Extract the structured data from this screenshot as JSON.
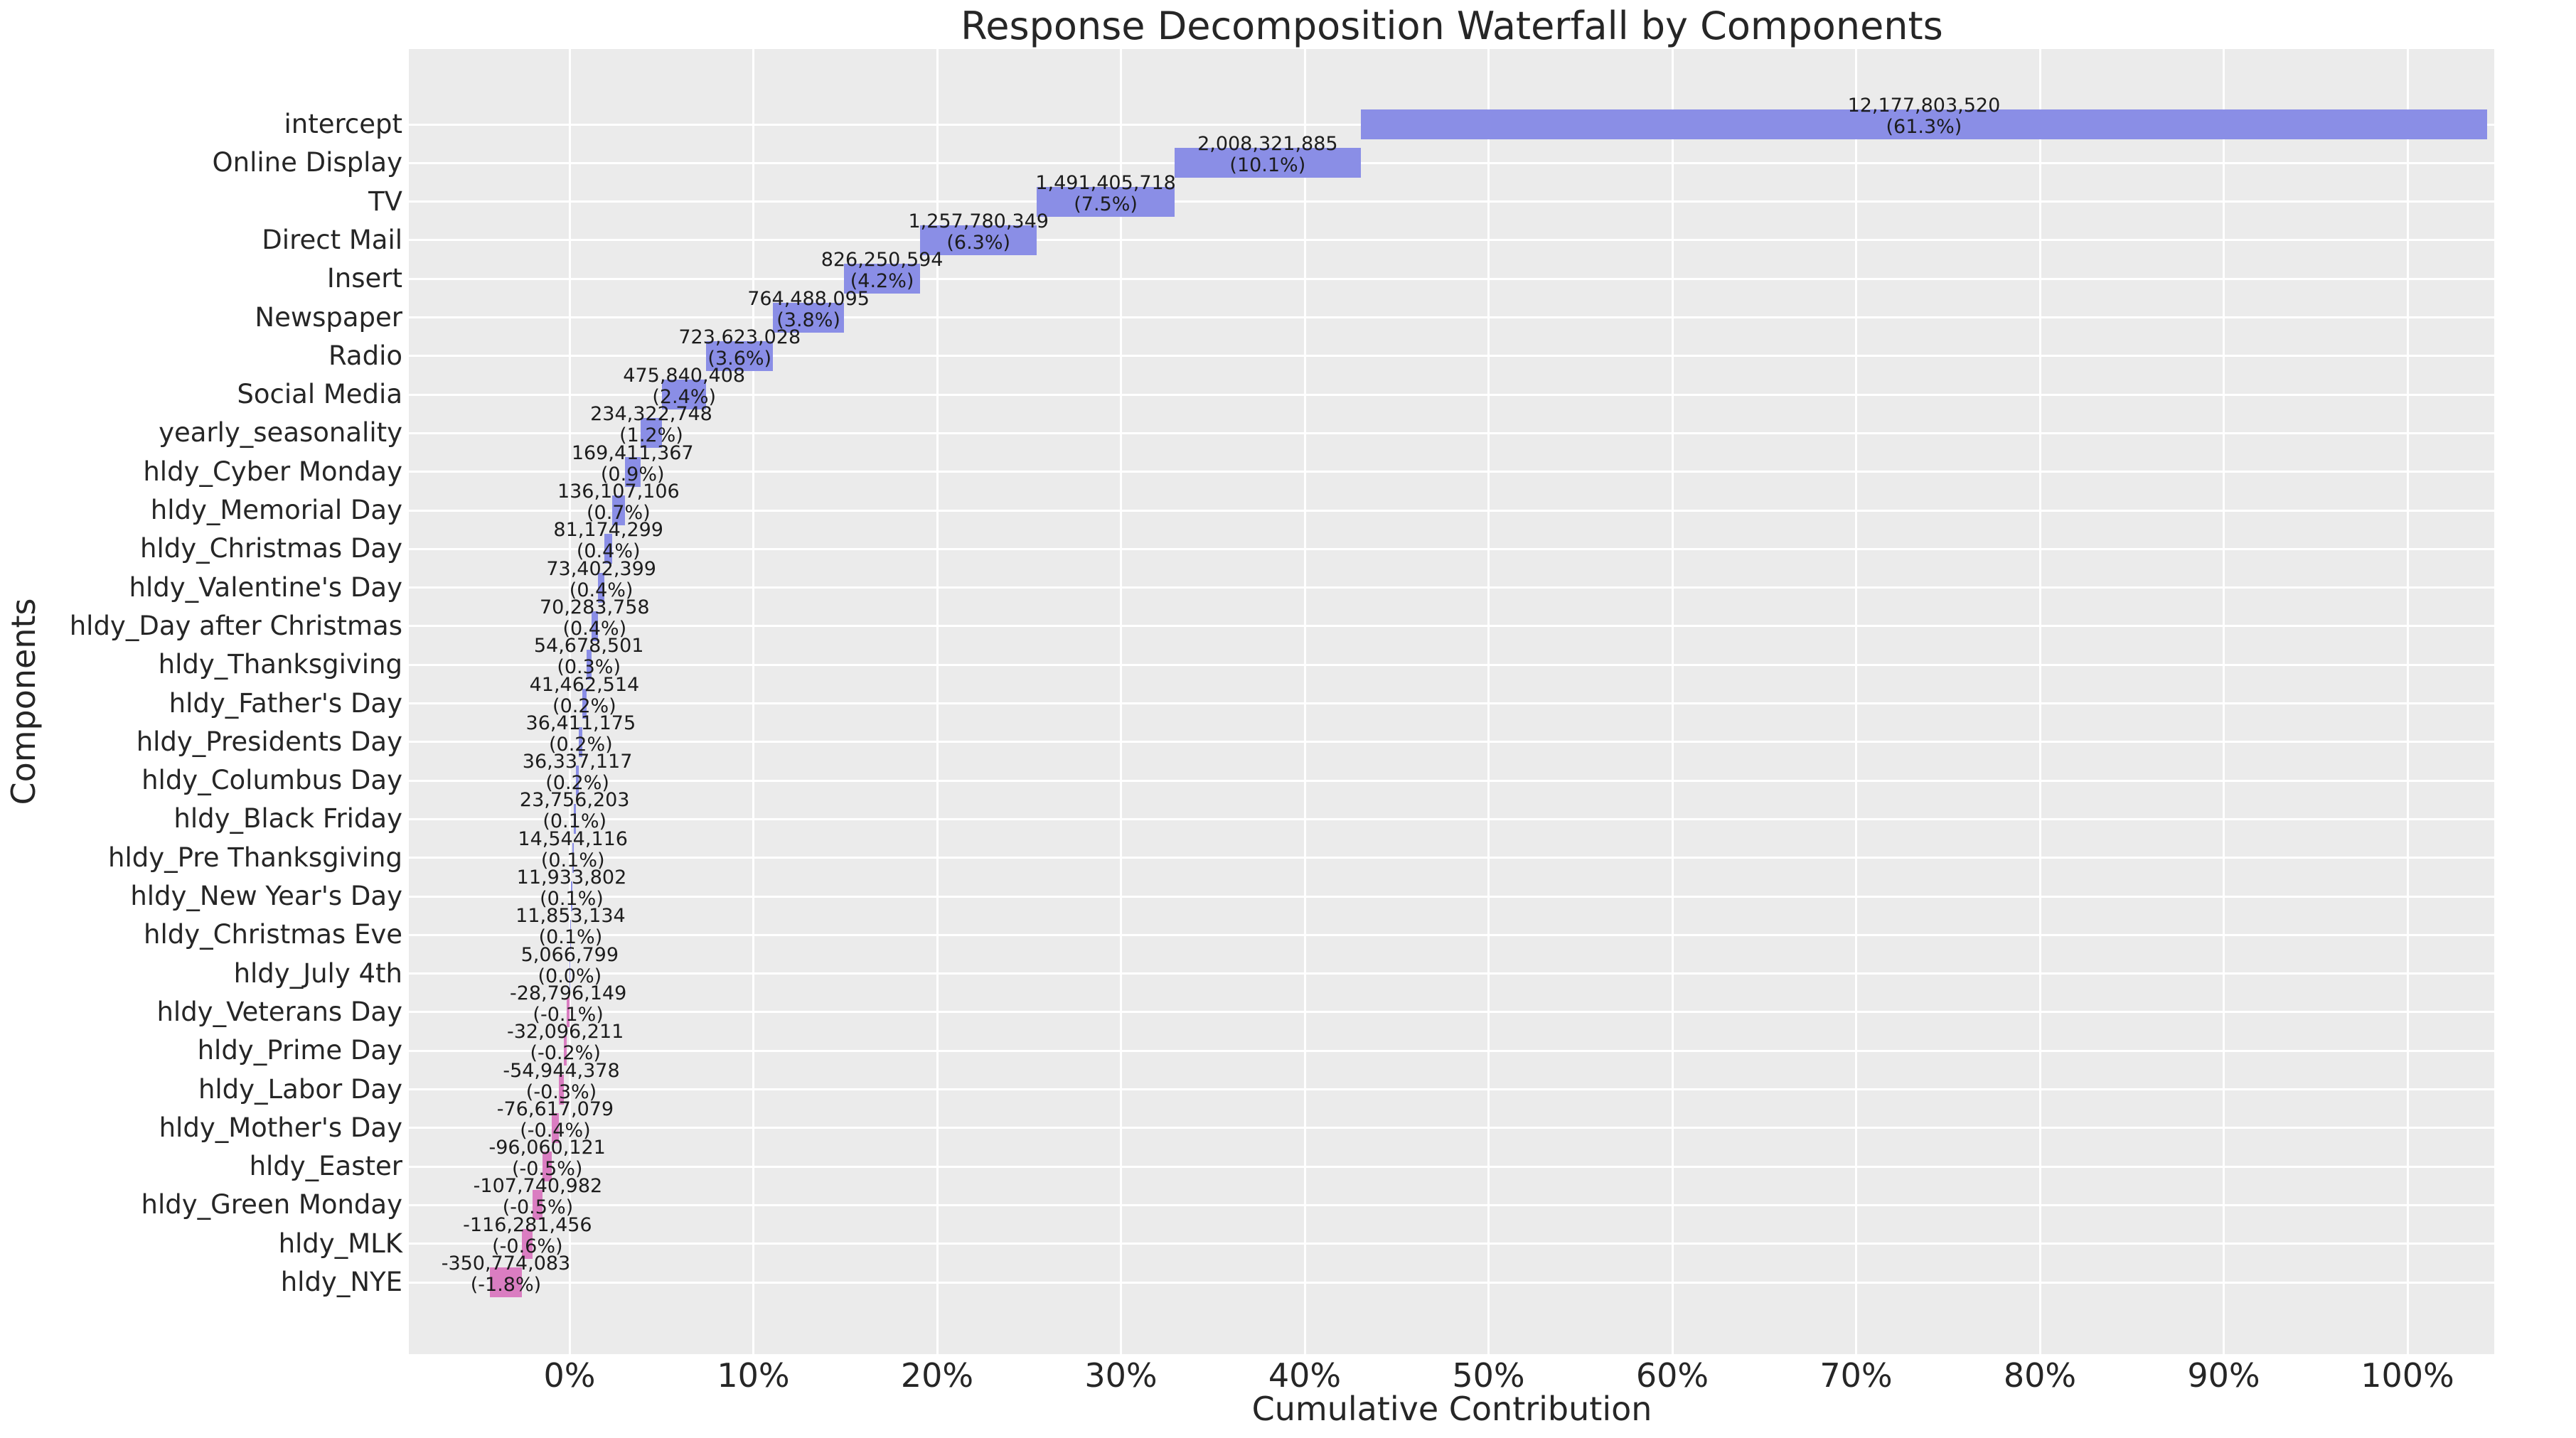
{
  "title": "Response Decomposition Waterfall by Components",
  "xlabel": "Cumulative Contribution",
  "ylabel": "Components",
  "colors": {
    "positive_bar": "#8A8EE6",
    "negative_bar": "#DA7DC1",
    "axes_background": "#EBEBEB",
    "gridline": "#FFFFFF",
    "text": "#262626"
  },
  "x_ticks": [
    "0%",
    "10%",
    "20%",
    "30%",
    "40%",
    "50%",
    "60%",
    "70%",
    "80%",
    "90%",
    "100%"
  ],
  "chart_data": {
    "type": "bar",
    "subtype": "horizontal-waterfall",
    "title": "Response Decomposition Waterfall by Components",
    "xlabel": "Cumulative Contribution",
    "ylabel": "Components",
    "grid": true,
    "xlim_pct": [
      -8.7,
      104.7
    ],
    "x_tick_pcts": [
      0,
      10,
      20,
      30,
      40,
      50,
      60,
      70,
      80,
      90,
      100
    ],
    "categories": [
      "intercept",
      "Online Display",
      "TV",
      "Direct Mail",
      "Insert",
      "Newspaper",
      "Radio",
      "Social Media",
      "yearly_seasonality",
      "hldy_Cyber Monday",
      "hldy_Memorial Day",
      "hldy_Christmas Day",
      "hldy_Valentine's Day",
      "hldy_Day after Christmas",
      "hldy_Thanksgiving",
      "hldy_Father's Day",
      "hldy_Presidents Day",
      "hldy_Columbus Day",
      "hldy_Black Friday",
      "hldy_Pre Thanksgiving",
      "hldy_New Year's Day",
      "hldy_Christmas Eve",
      "hldy_July 4th",
      "hldy_Veterans Day",
      "hldy_Prime Day",
      "hldy_Labor Day",
      "hldy_Mother's Day",
      "hldy_Easter",
      "hldy_Green Monday",
      "hldy_MLK",
      "hldy_NYE"
    ],
    "values": [
      12177803520,
      2008321885,
      1491405718,
      1257780349,
      826250594,
      764488095,
      723623028,
      475840408,
      234322748,
      169411367,
      136107106,
      81174299,
      73402399,
      70283758,
      54678501,
      41462514,
      36411175,
      36337117,
      23756203,
      14544116,
      11933802,
      11853134,
      5066799,
      -28796149,
      -32096211,
      -54944378,
      -76617079,
      -96060121,
      -107740982,
      -116281456,
      -350774083
    ],
    "value_labels": [
      "12,177,803,520",
      "2,008,321,885",
      "1,491,405,718",
      "1,257,780,349",
      "826,250,594",
      "764,488,095",
      "723,623,028",
      "475,840,408",
      "234,322,748",
      "169,411,367",
      "136,107,106",
      "81,174,299",
      "73,402,399",
      "70,283,758",
      "54,678,501",
      "41,462,514",
      "36,411,175",
      "36,337,117",
      "23,756,203",
      "14,544,116",
      "11,933,802",
      "11,853,134",
      "5,066,799",
      "-28,796,149",
      "-32,096,211",
      "-54,944,378",
      "-76,617,079",
      "-96,060,121",
      "-107,740,982",
      "-116,281,456",
      "-350,774,083"
    ],
    "pct_labels": [
      "(61.3%)",
      "(10.1%)",
      "(7.5%)",
      "(6.3%)",
      "(4.2%)",
      "(3.8%)",
      "(3.6%)",
      "(2.4%)",
      "(1.2%)",
      "(0.9%)",
      "(0.7%)",
      "(0.4%)",
      "(0.4%)",
      "(0.4%)",
      "(0.3%)",
      "(0.2%)",
      "(0.2%)",
      "(0.2%)",
      "(0.1%)",
      "(0.1%)",
      "(0.1%)",
      "(0.1%)",
      "(0.0%)",
      "(-0.1%)",
      "(-0.2%)",
      "(-0.3%)",
      "(-0.4%)",
      "(-0.5%)",
      "(-0.5%)",
      "(-0.6%)",
      "(-1.8%)"
    ]
  }
}
